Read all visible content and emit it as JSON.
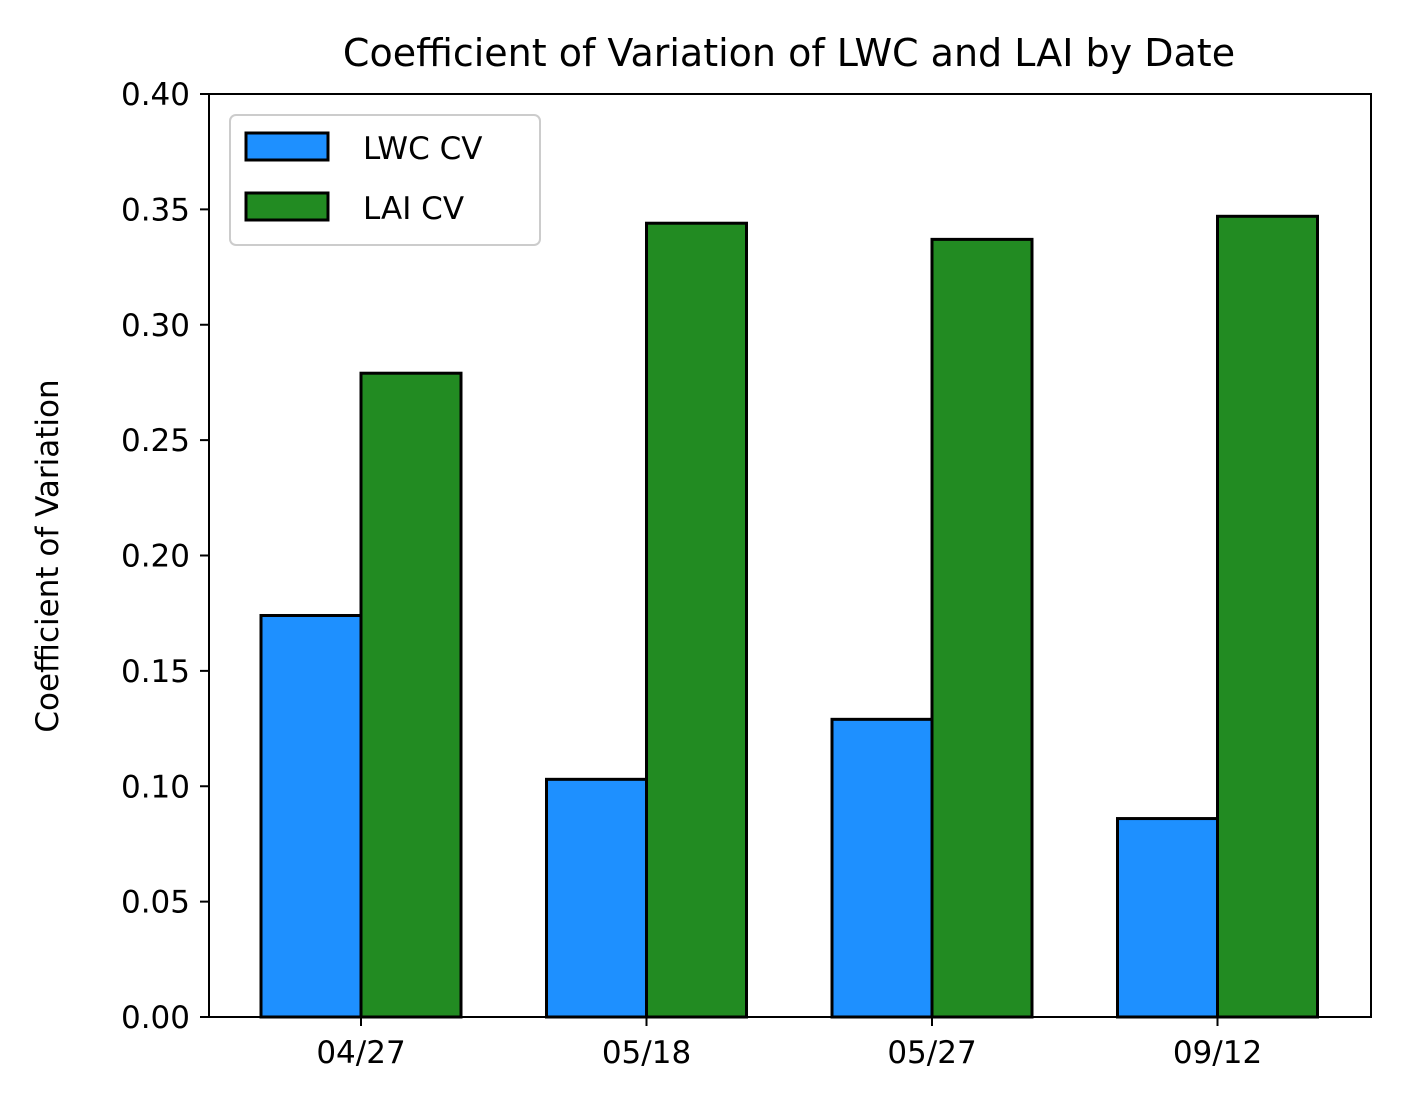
{
  "chart_data": {
    "type": "bar",
    "title": "Coefficient of Variation of LWC and LAI by Date",
    "xlabel": "",
    "ylabel": "Coefficient of Variation",
    "categories": [
      "04/27",
      "05/18",
      "05/27",
      "09/12"
    ],
    "series": [
      {
        "name": "LWC CV",
        "values": [
          0.174,
          0.103,
          0.129,
          0.086
        ],
        "color": "#1e90ff"
      },
      {
        "name": "LAI CV",
        "values": [
          0.279,
          0.344,
          0.337,
          0.347
        ],
        "color": "#228b22"
      }
    ],
    "ylim": [
      0,
      0.4
    ],
    "yticks": [
      "0.00",
      "0.05",
      "0.10",
      "0.15",
      "0.20",
      "0.25",
      "0.30",
      "0.35",
      "0.40"
    ],
    "ytick_values": [
      0,
      0.05,
      0.1,
      0.15,
      0.2,
      0.25,
      0.3,
      0.35,
      0.4
    ],
    "grid": false,
    "legend_position": "top-left",
    "bar_edge_color": "#000000"
  }
}
